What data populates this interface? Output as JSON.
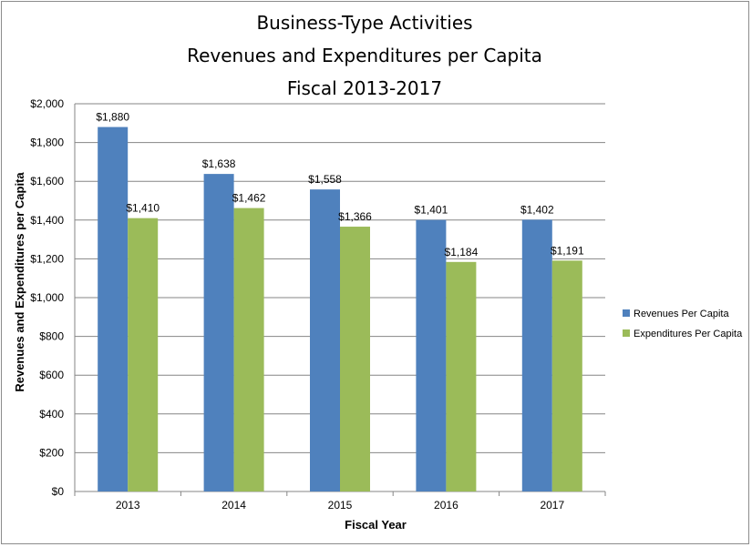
{
  "chart_data": {
    "type": "bar",
    "title": [
      "Business-Type Activities",
      "Revenues and Expenditures per Capita",
      "Fiscal 2013-2017"
    ],
    "xlabel": "Fiscal Year",
    "ylabel": "Revenues and Expenditures per Capita",
    "categories": [
      "2013",
      "2014",
      "2015",
      "2016",
      "2017"
    ],
    "ylim": [
      0,
      2000
    ],
    "yticks": [
      0,
      200,
      400,
      600,
      800,
      1000,
      1200,
      1400,
      1600,
      1800,
      2000
    ],
    "ytick_labels": [
      "$0",
      "$200",
      "$400",
      "$600",
      "$800",
      "$1,000",
      "$1,200",
      "$1,400",
      "$1,600",
      "$1,800",
      "$2,000"
    ],
    "grid": true,
    "legend_position": "right",
    "series": [
      {
        "name": "Revenues Per Capita",
        "color": "#4f81bd",
        "values": [
          1880,
          1638,
          1558,
          1401,
          1402
        ],
        "labels": [
          "$1,880",
          "$1,638",
          "$1,558",
          "$1,401",
          "$1,402"
        ]
      },
      {
        "name": "Expenditures Per Capita",
        "color": "#9bbb59",
        "values": [
          1410,
          1462,
          1366,
          1184,
          1191
        ],
        "labels": [
          "$1,410",
          "$1,462",
          "$1,366",
          "$1,184",
          "$1,191"
        ]
      }
    ]
  }
}
